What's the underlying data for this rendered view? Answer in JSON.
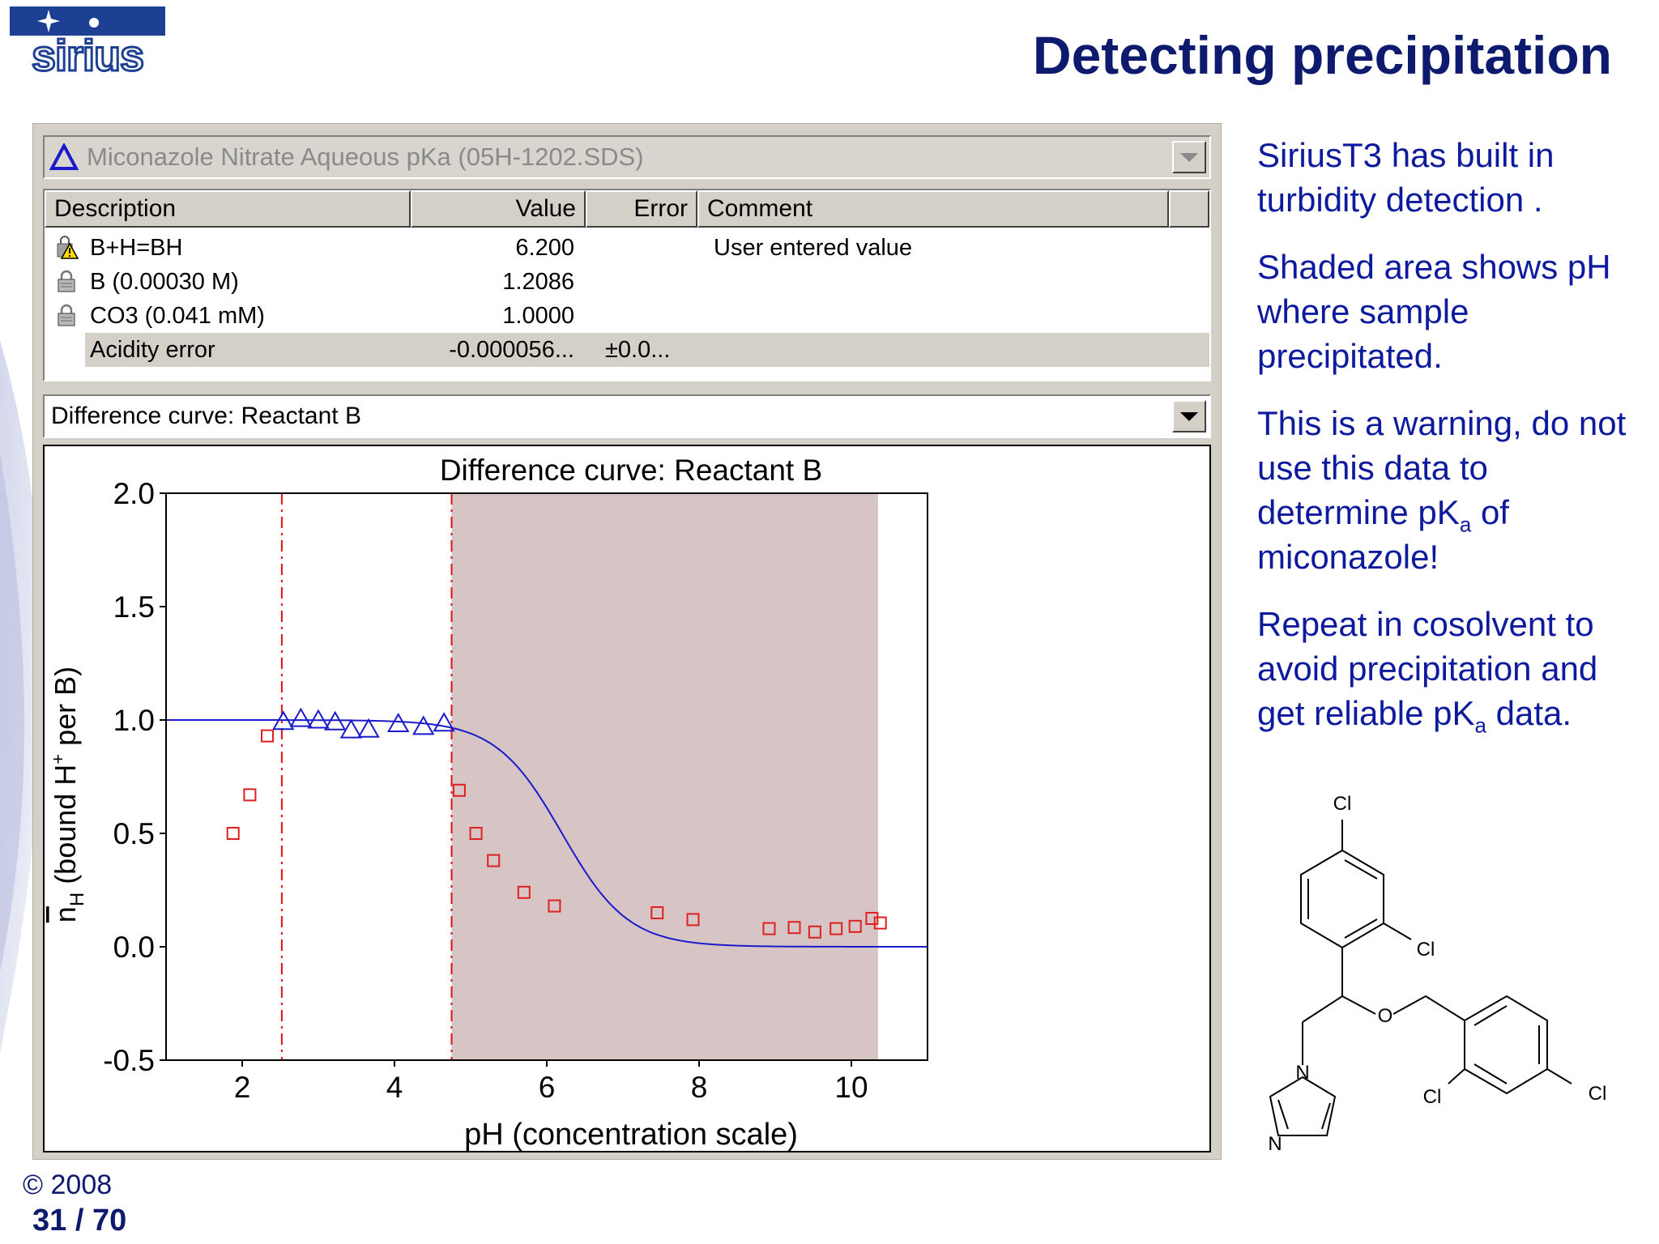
{
  "slide": {
    "title": "Detecting precipitation",
    "logo_text": "sirius",
    "copyright": "© 2008",
    "page": "31 / 70"
  },
  "app": {
    "dataset_label": "Miconazole Nitrate Aqueous pKa (05H-1202.SDS)",
    "table": {
      "headers": [
        "Description",
        "Value",
        "Error",
        "Comment"
      ],
      "rows": [
        {
          "icon": "warning-lock-icon",
          "description": "B+H=BH",
          "value": "6.200",
          "error": "",
          "comment": "User entered value"
        },
        {
          "icon": "lock-icon",
          "description": "B (0.00030 M)",
          "value": "1.2086",
          "error": "",
          "comment": ""
        },
        {
          "icon": "lock-icon",
          "description": "CO3 (0.041 mM)",
          "value": "1.0000",
          "error": "",
          "comment": ""
        },
        {
          "icon": "",
          "description": "Acidity error",
          "value": "-0.000056...",
          "error": "±0.0...",
          "comment": ""
        }
      ]
    },
    "curve_selector": "Difference curve: Reactant B"
  },
  "chart_data": {
    "type": "scatter",
    "title": "Difference curve: Reactant B",
    "xlabel": "pH (concentration scale)",
    "ylabel_main": "n",
    "ylabel_sub": "H",
    "ylabel_rest_a": " (bound H",
    "ylabel_sup": "+",
    "ylabel_rest_b": " per B)",
    "xlim": [
      1.0,
      11.0
    ],
    "ylim": [
      -0.5,
      2.0
    ],
    "xticks": [
      2,
      4,
      6,
      8,
      10
    ],
    "yticks": [
      2.0,
      1.5,
      1.0,
      0.5,
      0.0,
      -0.5
    ],
    "ytick_labels": [
      "2.0",
      "1.5",
      "1.0",
      "0.5",
      "0.0",
      "-0.5"
    ],
    "shaded_region": [
      4.75,
      10.35
    ],
    "vlines": [
      2.52,
      4.75
    ],
    "series": [
      {
        "marker": "triangle",
        "color": "#1a1acc",
        "x": [
          2.54,
          2.77,
          3.0,
          3.22,
          3.43,
          3.66,
          4.05,
          4.38,
          4.65
        ],
        "y": [
          0.992,
          1.005,
          0.998,
          0.99,
          0.955,
          0.958,
          0.982,
          0.97,
          0.985
        ]
      },
      {
        "marker": "square",
        "color": "#e02020",
        "x": [
          1.88,
          2.1,
          2.33,
          4.85,
          5.07,
          5.3,
          5.7,
          6.1,
          7.45,
          7.92,
          8.92,
          9.25,
          9.52,
          9.8,
          10.05,
          10.27,
          10.38
        ],
        "y": [
          0.5,
          0.67,
          0.93,
          0.69,
          0.5,
          0.38,
          0.24,
          0.18,
          0.15,
          0.12,
          0.08,
          0.085,
          0.065,
          0.08,
          0.09,
          0.125,
          0.105
        ]
      },
      {
        "marker": "line",
        "color": "#1a1acc",
        "pKa": 6.2,
        "pH_start": 1.0,
        "pH_end": 11.0
      }
    ]
  },
  "side_text": {
    "p1": "SiriusT3 has built in turbidity detection .",
    "p2": "Shaded area shows pH where sample precipitated.",
    "p3_a": "This is a warning, do not use this data to determine pK",
    "p3_sub": "a",
    "p3_b": " of miconazole!",
    "p4_a": "Repeat in cosolvent to avoid precipitation and get reliable pK",
    "p4_sub": "a",
    "p4_b": " data."
  },
  "molecule": {
    "atoms": [
      "Cl",
      "Cl",
      "O",
      "N",
      "N",
      "Cl",
      "Cl"
    ]
  }
}
